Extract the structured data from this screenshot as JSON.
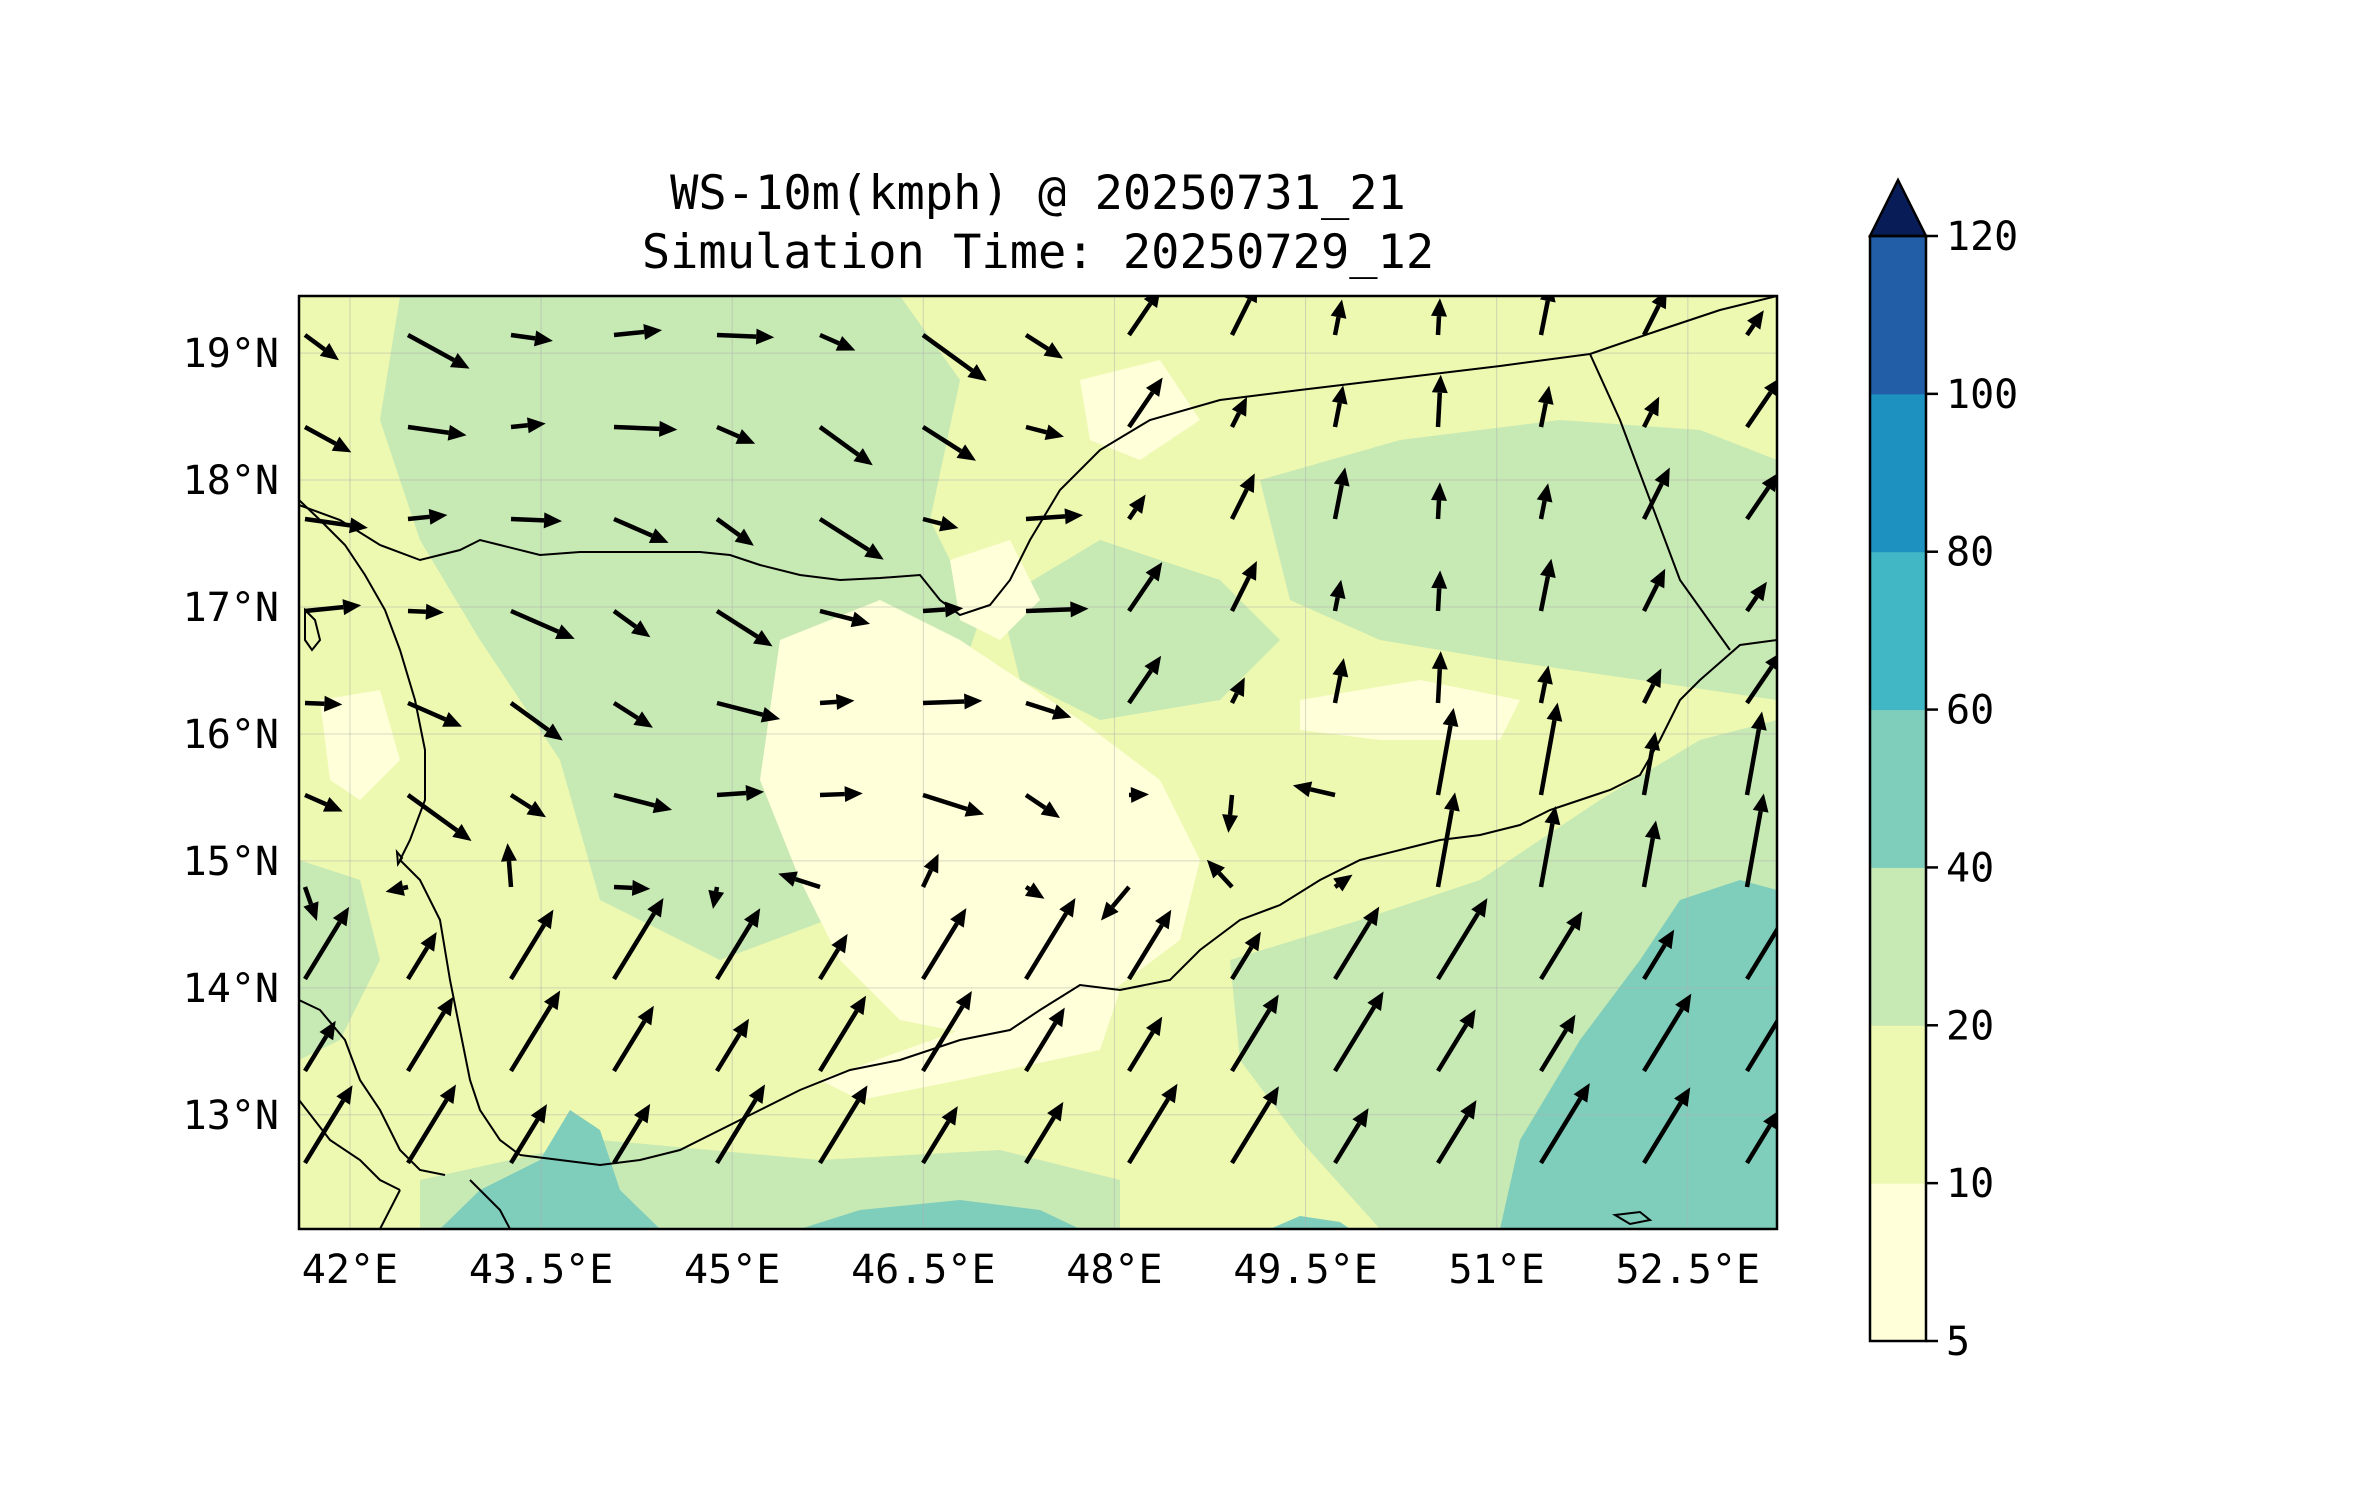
{
  "title": {
    "line1": "WS-10m(kmph) @ 20250731_21",
    "line2": "Simulation Time: 20250729_12"
  },
  "map": {
    "lon_range": [
      41.6,
      53.2
    ],
    "lat_range": [
      12.1,
      19.45
    ],
    "x_ticks": [
      {
        "value": 42.0,
        "label": "42°E"
      },
      {
        "value": 43.5,
        "label": "43.5°E"
      },
      {
        "value": 45.0,
        "label": "45°E"
      },
      {
        "value": 46.5,
        "label": "46.5°E"
      },
      {
        "value": 48.0,
        "label": "48°E"
      },
      {
        "value": 49.5,
        "label": "49.5°E"
      },
      {
        "value": 51.0,
        "label": "51°E"
      },
      {
        "value": 52.5,
        "label": "52.5°E"
      }
    ],
    "y_ticks": [
      {
        "value": 19,
        "label": "19°N"
      },
      {
        "value": 18,
        "label": "18°N"
      },
      {
        "value": 17,
        "label": "17°N"
      },
      {
        "value": 16,
        "label": "16°N"
      },
      {
        "value": 15,
        "label": "15°N"
      },
      {
        "value": 14,
        "label": "14°N"
      },
      {
        "value": 13,
        "label": "13°N"
      }
    ],
    "grid": true
  },
  "colorbar": {
    "levels": [
      5,
      10,
      20,
      40,
      60,
      80,
      100,
      120
    ],
    "labels": [
      "5",
      "10",
      "20",
      "40",
      "60",
      "80",
      "100",
      "120"
    ],
    "colors": [
      "#ffffd9",
      "#edf8b1",
      "#c7e9b4",
      "#7fcdbb",
      "#41b6c4",
      "#1d91c0",
      "#225ea8",
      "#253494"
    ],
    "extend_color": "#081d58",
    "extend": "max"
  },
  "colors": {
    "ws_5_10": "#ffffd9",
    "ws_10_20": "#edf8b1",
    "ws_20_40": "#c7e9b4",
    "ws_40_60": "#7fcdbb",
    "arrow": "#000000",
    "border": "#000000"
  }
}
